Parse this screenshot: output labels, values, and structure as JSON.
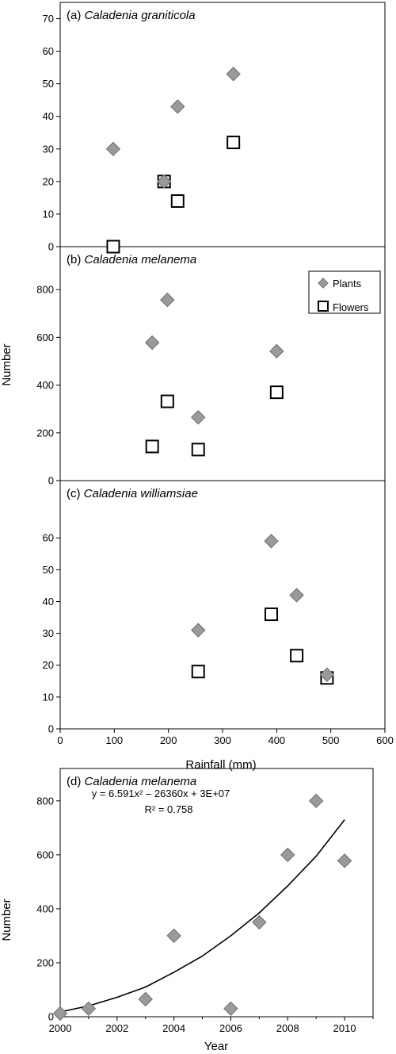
{
  "ylabel_top": "Number",
  "xlabel_top": "Rainfall (mm)",
  "top_xticks": [
    0,
    100,
    200,
    300,
    400,
    500,
    600
  ],
  "legend": {
    "plants": "Plants",
    "flowers": "Flowers"
  },
  "colors": {
    "plants_fill": "#9a9a9a",
    "plants_stroke": "#6e6e6e",
    "flowers_stroke": "#000000",
    "line": "#000000"
  },
  "chart_data": [
    {
      "type": "scatter",
      "panel_label": "(a)",
      "title": "Caladenia graniticola",
      "xlabel": "Rainfall (mm)",
      "ylabel": "Number",
      "xlim": [
        0,
        600
      ],
      "ylim": [
        0,
        75
      ],
      "yticks": [
        0,
        10,
        20,
        30,
        40,
        50,
        60,
        70
      ],
      "grid": false,
      "series": [
        {
          "name": "Plants",
          "points": [
            [
              98,
              30
            ],
            [
              192,
              20
            ],
            [
              217,
              43
            ],
            [
              320,
              53
            ]
          ]
        },
        {
          "name": "Flowers",
          "points": [
            [
              98,
              0
            ],
            [
              192,
              20
            ],
            [
              217,
              14
            ],
            [
              320,
              32
            ]
          ]
        }
      ]
    },
    {
      "type": "scatter",
      "panel_label": "(b)",
      "title": "Caladenia melanema",
      "xlabel": "Rainfall (mm)",
      "ylabel": "Number",
      "xlim": [
        0,
        600
      ],
      "ylim": [
        0,
        980
      ],
      "yticks": [
        0,
        200,
        400,
        600,
        800
      ],
      "grid": false,
      "legend_position": "top-right",
      "series": [
        {
          "name": "Plants",
          "points": [
            [
              170,
              578
            ],
            [
              198,
              757
            ],
            [
              255,
              265
            ],
            [
              400,
              542
            ]
          ]
        },
        {
          "name": "Flowers",
          "points": [
            [
              170,
              143
            ],
            [
              198,
              332
            ],
            [
              255,
              130
            ],
            [
              400,
              370
            ]
          ]
        }
      ]
    },
    {
      "type": "scatter",
      "panel_label": "(c)",
      "title": "Caladenia williamsiae",
      "xlabel": "Rainfall (mm)",
      "ylabel": "Number",
      "xlim": [
        0,
        600
      ],
      "ylim": [
        0,
        78
      ],
      "yticks": [
        0,
        10,
        20,
        30,
        40,
        50,
        60
      ],
      "xticks": [
        0,
        100,
        200,
        300,
        400,
        500,
        600
      ],
      "grid": false,
      "series": [
        {
          "name": "Plants",
          "points": [
            [
              255,
              31
            ],
            [
              390,
              59
            ],
            [
              437,
              42
            ],
            [
              493,
              17
            ]
          ]
        },
        {
          "name": "Flowers",
          "points": [
            [
              255,
              18
            ],
            [
              390,
              36
            ],
            [
              437,
              23
            ],
            [
              493,
              16
            ]
          ]
        }
      ]
    },
    {
      "type": "scatter",
      "panel_label": "(d)",
      "title": "Caladenia melanema",
      "xlabel": "Year",
      "ylabel": "Number",
      "xlim": [
        2000,
        2011
      ],
      "ylim": [
        0,
        920
      ],
      "xticks": [
        2000,
        2002,
        2004,
        2006,
        2008,
        2010
      ],
      "yticks": [
        0,
        200,
        400,
        600,
        800
      ],
      "grid": false,
      "equation": "y = 6.591x² – 26360x + 3E+07",
      "r_squared": "R² = 0.758",
      "trendline": {
        "type": "polynomial-2",
        "points": [
          [
            2000,
            18
          ],
          [
            2001,
            40
          ],
          [
            2002,
            72
          ],
          [
            2003,
            110
          ],
          [
            2004,
            165
          ],
          [
            2005,
            225
          ],
          [
            2006,
            300
          ],
          [
            2007,
            385
          ],
          [
            2008,
            485
          ],
          [
            2009,
            595
          ],
          [
            2010,
            730
          ]
        ]
      },
      "series": [
        {
          "name": "Plants",
          "points": [
            [
              2000,
              12
            ],
            [
              2001,
              30
            ],
            [
              2003,
              65
            ],
            [
              2004,
              300
            ],
            [
              2006,
              30
            ],
            [
              2007,
              350
            ],
            [
              2008,
              600
            ],
            [
              2009,
              800
            ],
            [
              2010,
              578
            ]
          ]
        }
      ]
    }
  ]
}
